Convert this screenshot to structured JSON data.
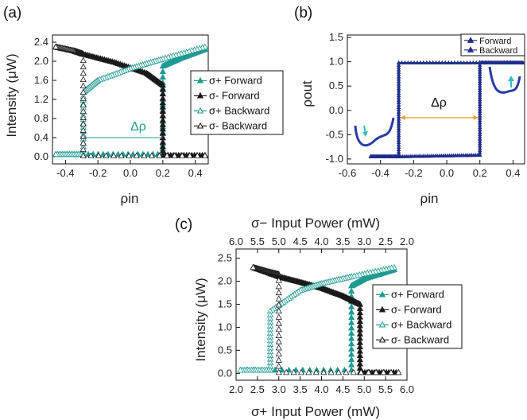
{
  "colors": {
    "teal": "#1f9a93",
    "black": "#1a1a1a",
    "navy": "#1f2d8a",
    "orange": "#f0a030",
    "well": "#2a3aa8",
    "arrow": "#38b8c8"
  },
  "panel_a": {
    "label": "(a)",
    "annotation": "Δρ",
    "chart_data": {
      "type": "scatter",
      "xlabel": "ρin",
      "ylabel": "Intensity (μW)",
      "xlim": [
        -0.48,
        0.48
      ],
      "ylim": [
        -0.15,
        2.55
      ],
      "xticks": [
        "-0.4",
        "-0.2",
        "0.0",
        "0.2",
        "0.4"
      ],
      "xtick_values": [
        -0.4,
        -0.2,
        0.0,
        0.2,
        0.4
      ],
      "yticks": [
        "0.0",
        "0.4",
        "0.8",
        "1.2",
        "1.6",
        "2.0",
        "2.4"
      ],
      "ytick_values": [
        0.0,
        0.4,
        0.8,
        1.2,
        1.6,
        2.0,
        2.4
      ],
      "legend_position": "right",
      "series": [
        {
          "name": "σ+ Forward",
          "marker": "triangle-filled",
          "color": "#1f9a93",
          "x": [
            -0.46,
            -0.29,
            -0.29,
            0.2,
            0.2,
            0.3,
            0.46
          ],
          "y": [
            0.05,
            0.05,
            0.05,
            0.05,
            1.9,
            2.05,
            2.25
          ]
        },
        {
          "name": "σ- Forward",
          "marker": "triangle-filled",
          "color": "#1a1a1a",
          "x": [
            -0.46,
            -0.35,
            -0.29,
            -0.1,
            0.1,
            0.2,
            0.2,
            0.46
          ],
          "y": [
            2.3,
            2.22,
            2.15,
            1.98,
            1.75,
            1.5,
            0.03,
            0.03
          ]
        },
        {
          "name": "σ+ Backward",
          "marker": "triangle-open",
          "color": "#1f9a93",
          "x": [
            0.46,
            0.2,
            0.0,
            -0.2,
            -0.29,
            -0.29,
            -0.46
          ],
          "y": [
            2.3,
            2.05,
            1.85,
            1.6,
            1.35,
            0.05,
            0.05
          ]
        },
        {
          "name": "σ- Backward",
          "marker": "triangle-open",
          "color": "#1a1a1a",
          "x": [
            0.46,
            -0.29,
            -0.29,
            -0.35,
            -0.46
          ],
          "y": [
            0.02,
            0.02,
            2.15,
            2.22,
            2.3
          ]
        }
      ]
    }
  },
  "panel_b": {
    "label": "(b)",
    "annotation": "Δρ",
    "chart_data": {
      "type": "line",
      "xlabel": "ρin",
      "ylabel": "ρout",
      "xlim": [
        -0.6,
        0.47
      ],
      "ylim": [
        -1.1,
        1.55
      ],
      "xticks": [
        "-0.6",
        "-0.4",
        "-0.2",
        "0.0",
        "0.2",
        "0.4"
      ],
      "xtick_values": [
        -0.6,
        -0.4,
        -0.2,
        0.0,
        0.2,
        0.4
      ],
      "yticks": [
        "-1.0",
        "-0.5",
        "0.0",
        "0.5",
        "1.0",
        "1.5"
      ],
      "ytick_values": [
        -1.0,
        -0.5,
        0.0,
        0.5,
        1.0,
        1.5
      ],
      "legend_position": "top-right",
      "series": [
        {
          "name": "Forward",
          "color": "#1f2d8a",
          "x": [
            -0.29,
            0.2,
            0.2,
            0.46
          ],
          "y": [
            -0.95,
            -0.92,
            0.98,
            0.98
          ]
        },
        {
          "name": "Backward",
          "color": "#1f2d8a",
          "x": [
            0.46,
            -0.29,
            -0.29,
            -0.46
          ],
          "y": [
            0.98,
            0.98,
            -0.95,
            -0.95
          ]
        }
      ]
    }
  },
  "panel_c": {
    "label": "(c)",
    "chart_data": {
      "type": "scatter",
      "xlabel": "σ+ Input Power (mW)",
      "ylabel": "Intensity (μW)",
      "top_xlabel": "σ− Input Power (mW)",
      "xlim": [
        2.0,
        6.0
      ],
      "ylim": [
        -0.15,
        2.7
      ],
      "xticks": [
        "2.0",
        "2.5",
        "3.0",
        "3.5",
        "4.0",
        "4.5",
        "5.0",
        "5.5",
        "6.0"
      ],
      "xtick_values": [
        2.0,
        2.5,
        3.0,
        3.5,
        4.0,
        4.5,
        5.0,
        5.5,
        6.0
      ],
      "top_xticks": [
        "6.0",
        "5.5",
        "5.0",
        "4.5",
        "4.0",
        "3.5",
        "3.0",
        "2.5",
        "2.0"
      ],
      "yticks": [
        "0.0",
        "0.5",
        "1.0",
        "1.5",
        "2.0",
        "2.5"
      ],
      "ytick_values": [
        0.0,
        0.5,
        1.0,
        1.5,
        2.0,
        2.5
      ],
      "legend_position": "right",
      "series": [
        {
          "name": "σ+ Forward",
          "marker": "triangle-filled",
          "color": "#1f9a93",
          "x": [
            2.1,
            4.7,
            4.7,
            5.0,
            5.7
          ],
          "y": [
            0.07,
            0.07,
            1.9,
            2.05,
            2.25
          ]
        },
        {
          "name": "σ- Forward",
          "marker": "triangle-filled",
          "color": "#1a1a1a",
          "x": [
            2.4,
            3.0,
            3.5,
            4.0,
            4.5,
            4.9,
            4.9,
            5.8
          ],
          "y": [
            2.3,
            2.1,
            1.98,
            1.85,
            1.68,
            1.5,
            0.02,
            0.02
          ]
        },
        {
          "name": "σ+ Backward",
          "marker": "triangle-open",
          "color": "#1f9a93",
          "x": [
            5.7,
            4.7,
            4.0,
            3.5,
            2.8,
            2.8,
            2.1
          ],
          "y": [
            2.3,
            2.1,
            1.95,
            1.8,
            1.35,
            0.07,
            0.07
          ]
        },
        {
          "name": "σ- Backward",
          "marker": "triangle-open",
          "color": "#1a1a1a",
          "x": [
            5.8,
            3.0,
            3.0,
            2.7,
            2.4
          ],
          "y": [
            0.02,
            0.02,
            2.15,
            2.22,
            2.3
          ]
        }
      ]
    }
  }
}
